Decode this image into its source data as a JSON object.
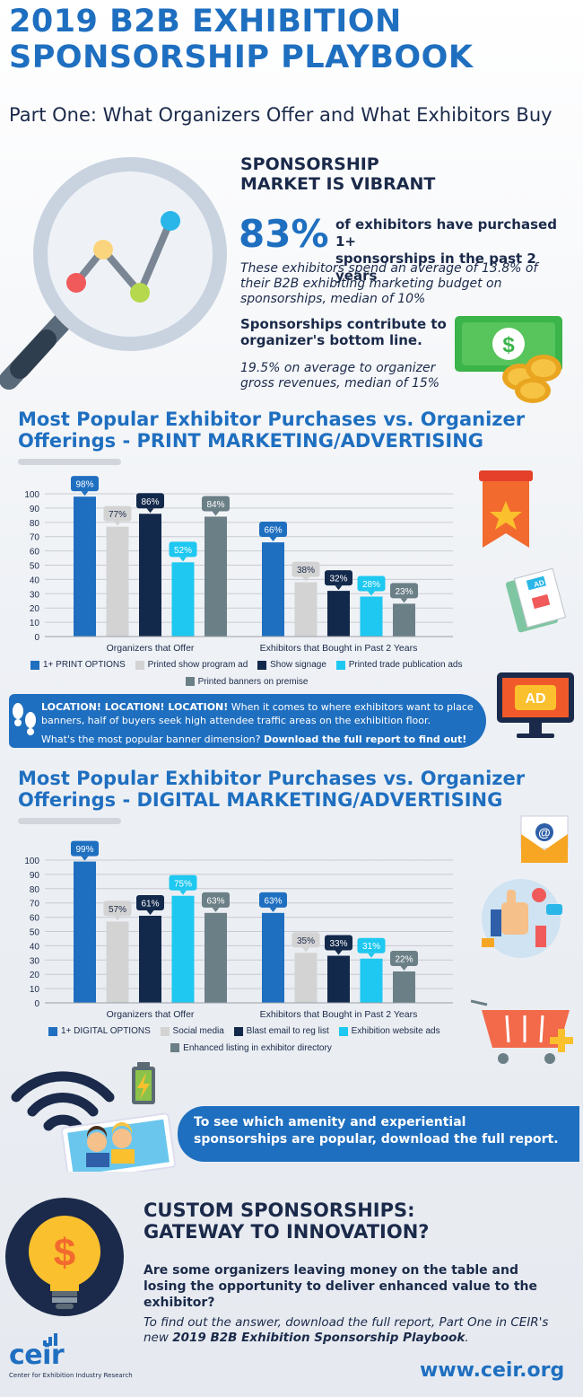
{
  "header": {
    "title_line1": "2019 B2B EXHIBITION",
    "title_line2": "SPONSORSHIP PLAYBOOK",
    "subtitle": "Part One: What Organizers Offer and What Exhibitors Buy"
  },
  "market": {
    "heading_line1": "SPONSORSHIP",
    "heading_line2": "MARKET IS VIBRANT",
    "stat_value": "83%",
    "stat_line1": "of exhibitors have purchased 1+",
    "stat_line2": "sponsorships in the past 2 years",
    "spend_text": "These exhibitors spend an average of 13.8% of their B2B exhibiting marketing budget on sponsorships, median of 10%",
    "bottom_line_heading": "Sponsorships contribute to organizer's bottom line.",
    "revenue_text": "19.5% on average to organizer gross revenues, median of 15%",
    "dollar_symbol": "$"
  },
  "print_section": {
    "title_line1": "Most Popular Exhibitor Purchases vs. Organizer",
    "title_line2": "Offerings - PRINT MARKETING/ADVERTISING",
    "ad_label": "AD"
  },
  "location_banner": {
    "lead": "LOCATION! LOCATION! LOCATION!",
    "text": " When it comes to where exhibitors want to place banners, half of buyers seek high attendee traffic areas on the exhibition floor.",
    "question": "What's the most popular banner dimension? ",
    "cta": "Download the full report to find out!"
  },
  "digital_section": {
    "title_line1": "Most Popular Exhibitor Purchases vs. Organizer",
    "title_line2": "Offerings - DIGITAL MARKETING/ADVERTISING",
    "email_symbol": "@"
  },
  "amenity_banner": {
    "text": "To see which amenity and experiential sponsorships are popular, download the full report."
  },
  "custom": {
    "heading_line1": "CUSTOM SPONSORSHIPS:",
    "heading_line2": "GATEWAY TO INNOVATION?",
    "question": "Are some organizers leaving money on the table and losing the opportunity to deliver enhanced value to the exhibitor?",
    "answer_prefix": "To find out the answer, download the full report, Part One in CEIR's new ",
    "answer_bold": "2019 B2B Exhibition Sponsorship Playbook",
    "answer_suffix": "."
  },
  "footer": {
    "logo_text": "ceir",
    "logo_sub": "Center for Exhibition Industry Research",
    "url": "www.ceir.org"
  },
  "chart_data": [
    {
      "type": "bar",
      "title": "Most Popular Exhibitor Purchases vs. Organizer Offerings - PRINT MARKETING/ADVERTISING",
      "categories": [
        "Organizers that Offer",
        "Exhibitors that Bought in Past 2 Years"
      ],
      "ylim": [
        0,
        100
      ],
      "yticks": [
        0,
        10,
        20,
        30,
        40,
        50,
        60,
        70,
        80,
        90,
        100
      ],
      "series": [
        {
          "name": "1+ PRINT OPTIONS",
          "color": "#1f6fc0",
          "values": [
            98,
            66
          ]
        },
        {
          "name": "Printed show program ad",
          "color": "#d3d3d3",
          "values": [
            77,
            38
          ]
        },
        {
          "name": "Show signage",
          "color": "#13294b",
          "values": [
            86,
            32
          ]
        },
        {
          "name": "Printed trade publication ads",
          "color": "#1ec8f0",
          "values": [
            52,
            28
          ]
        },
        {
          "name": "Printed banners on premise",
          "color": "#6b7f86",
          "values": [
            84,
            23
          ]
        }
      ],
      "data_labels": [
        [
          "98%",
          "77%",
          "86%",
          "52%",
          "84%"
        ],
        [
          "66%",
          "38%",
          "32%",
          "28%",
          "23%"
        ]
      ]
    },
    {
      "type": "bar",
      "title": "Most Popular Exhibitor Purchases vs. Organizer Offerings - DIGITAL MARKETING/ADVERTISING",
      "categories": [
        "Organizers that Offer",
        "Exhibitors that Bought in Past 2 Years"
      ],
      "ylim": [
        0,
        100
      ],
      "yticks": [
        0,
        10,
        20,
        30,
        40,
        50,
        60,
        70,
        80,
        90,
        100
      ],
      "series": [
        {
          "name": "1+ DIGITAL OPTIONS",
          "color": "#1f6fc0",
          "values": [
            99,
            63
          ]
        },
        {
          "name": "Social media",
          "color": "#d3d3d3",
          "values": [
            57,
            35
          ]
        },
        {
          "name": "Blast email to reg list",
          "color": "#13294b",
          "values": [
            61,
            33
          ]
        },
        {
          "name": "Exhibition website ads",
          "color": "#1ec8f0",
          "values": [
            75,
            31
          ]
        },
        {
          "name": "Enhanced listing in  exhibitor directory",
          "color": "#6b7f86",
          "values": [
            63,
            22
          ]
        }
      ],
      "data_labels": [
        [
          "99%",
          "57%",
          "61%",
          "75%",
          "63%"
        ],
        [
          "63%",
          "35%",
          "33%",
          "31%",
          "22%"
        ]
      ]
    }
  ]
}
